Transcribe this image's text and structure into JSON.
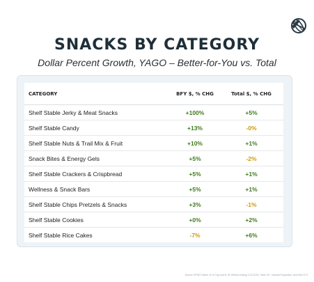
{
  "header": {
    "title": "SNACKS BY CATEGORY",
    "subtitle": "Dollar Percent Growth, YAGO – Better-for-You vs. Total"
  },
  "table": {
    "columns": [
      "CATEGORY",
      "BFY $, % CHG",
      "Total $, % CHG"
    ],
    "rows": [
      {
        "category": "Shelf Stable Jerky & Meat Snacks",
        "bfy": "+100%",
        "total": "+5%"
      },
      {
        "category": "Shelf Stable Candy",
        "bfy": "+13%",
        "total": "-0%"
      },
      {
        "category": "Shelf Stable Nuts & Trail Mix & Fruit",
        "bfy": "+10%",
        "total": "+1%"
      },
      {
        "category": "Snack Bites & Energy Gels",
        "bfy": "+5%",
        "total": "-2%"
      },
      {
        "category": "Shelf Stable Crackers & Crispbread",
        "bfy": "+5%",
        "total": "+1%"
      },
      {
        "category": "Wellness & Snack Bars",
        "bfy": "+5%",
        "total": "+1%"
      },
      {
        "category": "Shelf Stable Chips Pretzels & Snacks",
        "bfy": "+3%",
        "total": "-1%"
      },
      {
        "category": "Shelf Stable Cookies",
        "bfy": "+0%",
        "total": "+2%"
      },
      {
        "category": "Shelf Stable Rice Cakes",
        "bfy": "-7%",
        "total": "+6%"
      }
    ]
  },
  "colors": {
    "positive": "#3f7a1c",
    "negative": "#c99a12",
    "panel": "#eef3f7",
    "title": "#1f2f38"
  },
  "logo_icon": "globe-icon",
  "footer": {
    "source": "Source SPINS Satori, $ % Chg and $, 52 Weeks ending 3.23.2025, Total US - Natural Expanded, and MULO+C"
  }
}
